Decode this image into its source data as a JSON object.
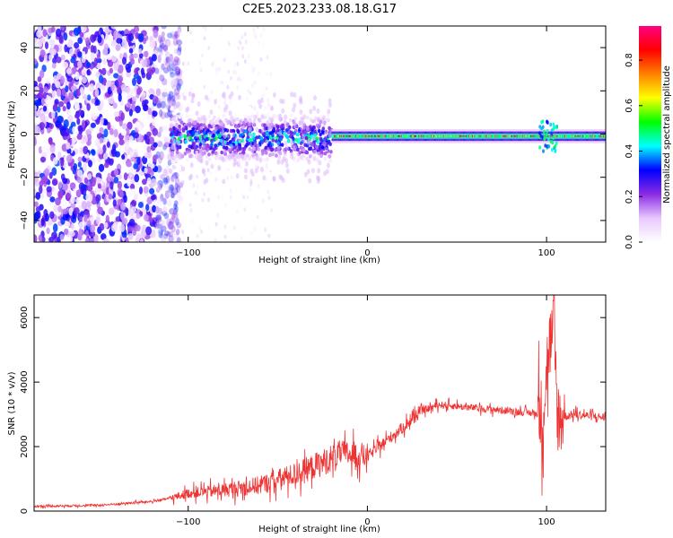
{
  "title": "C2E5.2023.233.08.18.G17",
  "chart_data": [
    {
      "type": "heatmap",
      "description": "Spectrogram of received signal vs tangent-line height",
      "xlabel": "Height of straight line (km)",
      "ylabel": "Frequency (Hz)",
      "xlim": [
        -186,
        133
      ],
      "ylim": [
        -50,
        50
      ],
      "xticks": [
        -100,
        0,
        100
      ],
      "yticks": [
        -40,
        -20,
        0,
        20,
        40
      ],
      "colorbar": {
        "label": "Normalized spectral amplitude",
        "range": [
          0.0,
          0.95
        ],
        "ticks": [
          0.0,
          0.2,
          0.4,
          0.6,
          0.8
        ],
        "colormap": [
          "#ffffff",
          "#e8c8ff",
          "#8a2be2",
          "#0000ff",
          "#00ffff",
          "#00ff00",
          "#ffff00",
          "#ff8000",
          "#ff0000",
          "#ff0080"
        ]
      },
      "features": [
        {
          "x_range": [
            -186,
            -108
          ],
          "pattern": "scattered noise across all frequencies",
          "peak_amplitude": 0.35
        },
        {
          "x_range": [
            -110,
            -20
          ],
          "pattern": "broadened signal band centered near 0 Hz",
          "center_hz": -2,
          "width_hz": 16,
          "peak_amplitude": 0.45
        },
        {
          "x_range": [
            -20,
            133
          ],
          "pattern": "narrow signal line near 0 Hz",
          "center_hz": -1,
          "width_hz": 6,
          "peak_amplitude": 0.9
        }
      ]
    },
    {
      "type": "line",
      "xlabel": "Height of straight line (km)",
      "ylabel": "SNR (10 * v/v)",
      "xlim": [
        -186,
        133
      ],
      "ylim": [
        0,
        6700
      ],
      "xticks": [
        -100,
        0,
        100
      ],
      "yticks": [
        0,
        2000,
        4000,
        6000
      ],
      "color": "#ee3333",
      "series": [
        {
          "x": [
            -186,
            -150,
            -120,
            -110,
            -100,
            -80,
            -60,
            -40,
            -25,
            -15,
            0,
            10,
            20,
            30,
            40,
            50,
            60,
            70,
            80,
            90,
            98,
            101,
            104,
            106,
            108,
            115,
            133
          ],
          "values": [
            150,
            180,
            300,
            400,
            550,
            650,
            800,
            1150,
            1500,
            1800,
            1700,
            2150,
            2600,
            3100,
            3300,
            3250,
            3200,
            3150,
            3100,
            3050,
            3000,
            5000,
            5600,
            3000,
            2900,
            3000,
            2900
          ]
        }
      ]
    }
  ]
}
